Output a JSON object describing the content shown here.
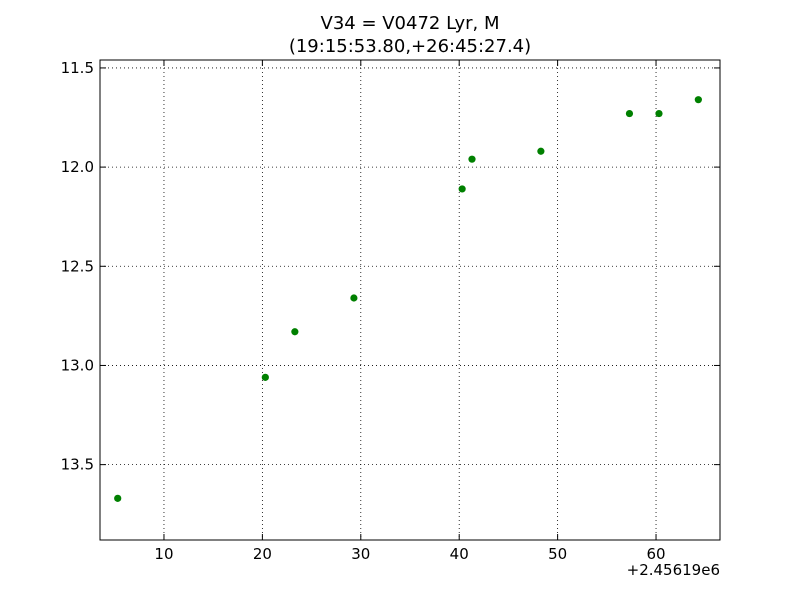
{
  "chart_data": {
    "type": "scatter",
    "title": "V34 = V0472 Lyr, M",
    "subtitle": "(19:15:53.80,+26:45:27.4)",
    "xlabel": "",
    "ylabel": "",
    "x_offset_label": "+2.45619e6",
    "xlim": [
      3.5,
      66.5
    ],
    "ylim": [
      13.88,
      11.46
    ],
    "y_inverted": true,
    "grid": true,
    "marker_color": "#008000",
    "x_ticks": [
      10,
      20,
      30,
      40,
      50,
      60
    ],
    "x_tick_labels": [
      "10",
      "20",
      "30",
      "40",
      "50",
      "60"
    ],
    "y_ticks": [
      11.5,
      12.0,
      12.5,
      13.0,
      13.5
    ],
    "y_tick_labels": [
      "11.5",
      "12.0",
      "12.5",
      "13.0",
      "13.5"
    ],
    "series": [
      {
        "x": [
          5.3,
          20.3,
          23.3,
          29.3,
          40.3,
          41.3,
          48.3,
          57.3,
          60.3,
          64.3
        ],
        "y": [
          13.67,
          13.06,
          12.83,
          12.66,
          12.11,
          11.96,
          11.92,
          11.73,
          11.73,
          11.66
        ]
      }
    ]
  }
}
